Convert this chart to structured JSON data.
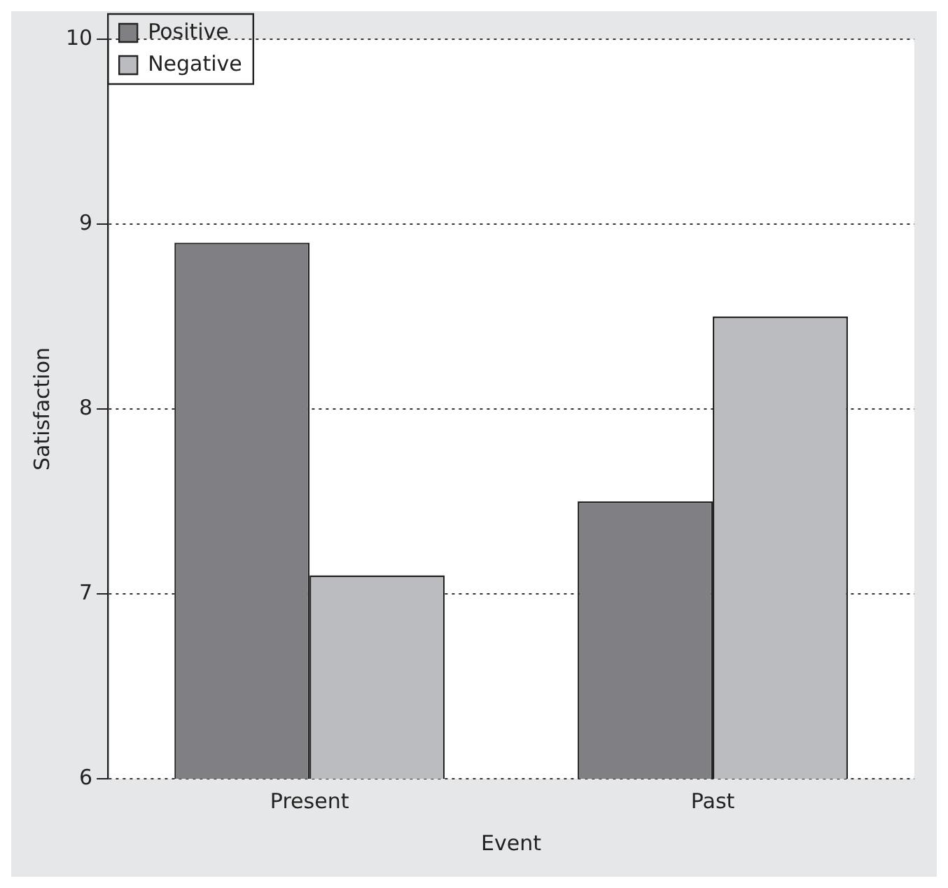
{
  "chart_data": {
    "type": "bar",
    "xlabel": "Event",
    "ylabel": "Satisfaction",
    "categories": [
      "Present",
      "Past"
    ],
    "series": [
      {
        "name": "Positive",
        "color": "#808084",
        "values": [
          8.9,
          7.5
        ]
      },
      {
        "name": "Negative",
        "color": "#bbbcc0",
        "values": [
          7.1,
          8.5
        ]
      }
    ],
    "ylim": [
      6,
      10
    ],
    "yticks": [
      6,
      7,
      8,
      9,
      10
    ],
    "grid": "y",
    "legend": "top left"
  }
}
